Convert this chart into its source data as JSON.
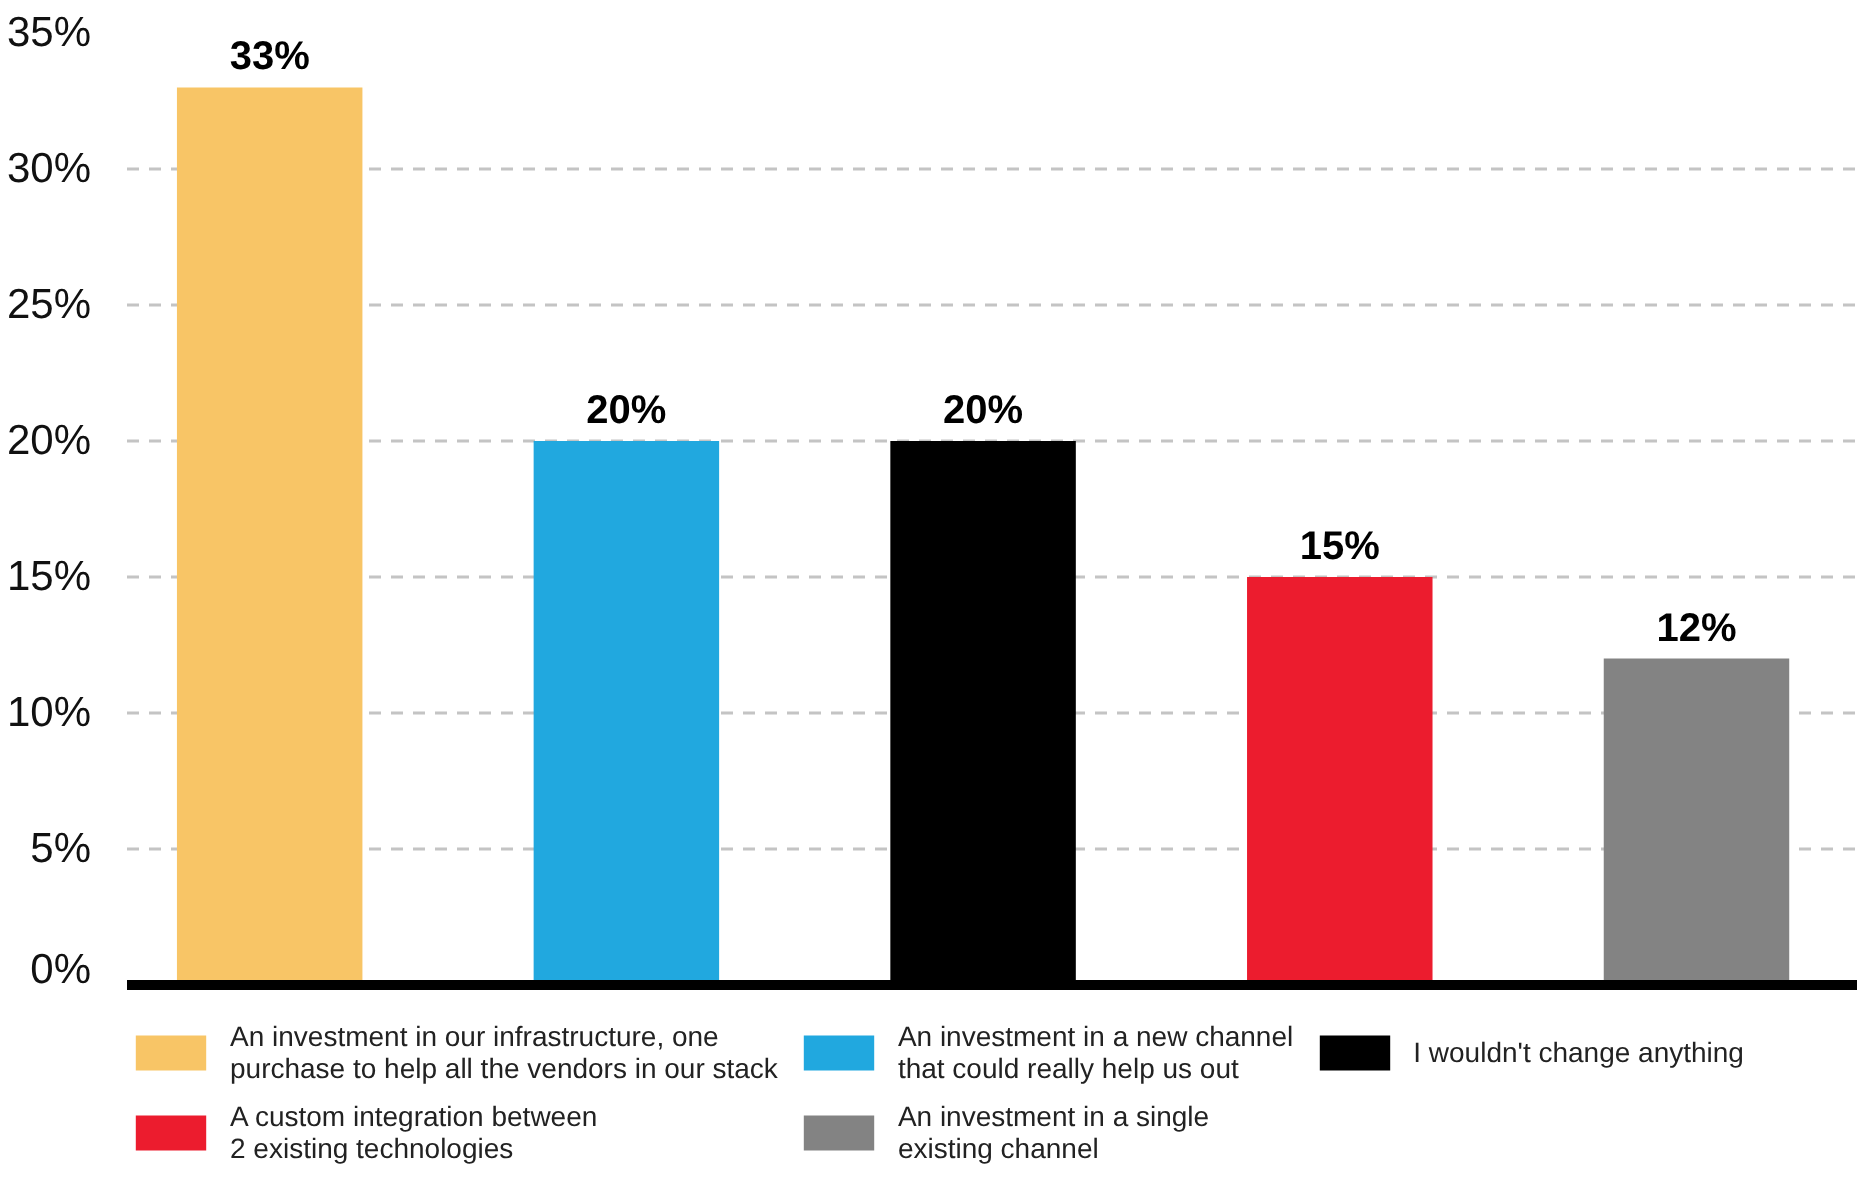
{
  "chart_data": {
    "type": "bar",
    "categories": [
      null,
      null,
      null,
      null,
      null
    ],
    "series": [
      {
        "name": "An investment in our infrastructure, one\npurchase to help all the vendors in our stack",
        "color": "#f8c566",
        "values": [
          33,
          null,
          null,
          null,
          null
        ],
        "value_labels": [
          "33%",
          null,
          null,
          null,
          null
        ]
      },
      {
        "name": "An investment in a new channel\nthat could really help us out",
        "color": "#21a8df",
        "values": [
          null,
          20,
          null,
          null,
          null
        ],
        "value_labels": [
          null,
          "20%",
          null,
          null,
          null
        ]
      },
      {
        "name": "I wouldn't change anything",
        "color": "#000000",
        "values": [
          null,
          null,
          20,
          null,
          null
        ],
        "value_labels": [
          null,
          null,
          "20%",
          null,
          null
        ]
      },
      {
        "name": "A custom integration between\n2 existing technologies",
        "color": "#ec1c2e",
        "values": [
          null,
          null,
          null,
          15,
          null
        ],
        "value_labels": [
          null,
          null,
          null,
          "15%",
          null
        ]
      },
      {
        "name": "An investment in a single\nexisting channel",
        "color": "#838383",
        "values": [
          null,
          null,
          null,
          null,
          12
        ],
        "value_labels": [
          null,
          null,
          null,
          null,
          "12%"
        ]
      }
    ],
    "ylim": [
      0,
      35
    ],
    "yticks": [
      {
        "value": 0,
        "label": "0%"
      },
      {
        "value": 5,
        "label": "5%"
      },
      {
        "value": 10,
        "label": "10%"
      },
      {
        "value": 15,
        "label": "15%"
      },
      {
        "value": 20,
        "label": "20%"
      },
      {
        "value": 25,
        "label": "25%"
      },
      {
        "value": 30,
        "label": "30%"
      },
      {
        "value": 35,
        "label": "35%"
      }
    ],
    "grid": "y",
    "legend": "bottom",
    "tick_labels": "y"
  }
}
